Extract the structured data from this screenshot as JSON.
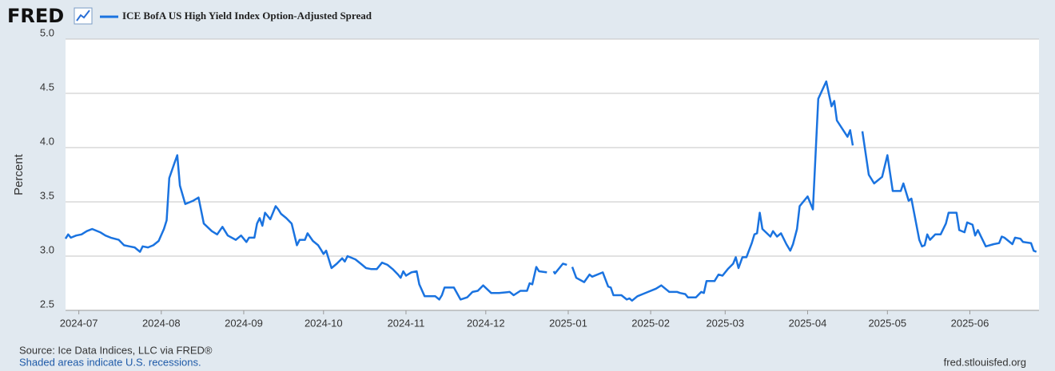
{
  "chart_data": {
    "type": "line",
    "logo": "FRED",
    "ylabel": "Percent",
    "source": "Source: Ice Data Indices, LLC via FRED®",
    "note": "Shaded areas indicate U.S. recessions.",
    "credit": "fred.stlouisfed.org",
    "grid": true,
    "xlim": [
      -5,
      361
    ],
    "xticks": [
      {
        "value": 0,
        "label": "2024-07"
      },
      {
        "value": 31,
        "label": "2024-08"
      },
      {
        "value": 62,
        "label": "2024-09"
      },
      {
        "value": 92,
        "label": "2024-10"
      },
      {
        "value": 123,
        "label": "2024-11"
      },
      {
        "value": 153,
        "label": "2024-12"
      },
      {
        "value": 184,
        "label": "2025-01"
      },
      {
        "value": 215,
        "label": "2025-02"
      },
      {
        "value": 243,
        "label": "2025-03"
      },
      {
        "value": 274,
        "label": "2025-04"
      },
      {
        "value": 304,
        "label": "2025-05"
      },
      {
        "value": 335,
        "label": "2025-06"
      }
    ],
    "ylim": [
      2.5,
      5.0
    ],
    "yticks": [
      2.5,
      {
        "value": 3,
        "label": "3.0"
      },
      3.5,
      {
        "value": 4,
        "label": "4.0"
      },
      4.5,
      {
        "value": 5,
        "label": "5.0"
      }
    ],
    "x": [
      -5,
      -4,
      -3,
      -1,
      1,
      3,
      5,
      8,
      10,
      12,
      15,
      17,
      19,
      21,
      23,
      24,
      26,
      28,
      30,
      32,
      33,
      34,
      36,
      37,
      38,
      40,
      43,
      45,
      47,
      50,
      52,
      54,
      56,
      59,
      61,
      63,
      64,
      66,
      67,
      68,
      69,
      70,
      72,
      74,
      75,
      76,
      78,
      80,
      81,
      82,
      83,
      85,
      86,
      88,
      90,
      91,
      92,
      93,
      95,
      97,
      99,
      100,
      101,
      104,
      106,
      108,
      110,
      112,
      114,
      116,
      118,
      120,
      121,
      122,
      123,
      125,
      127,
      128,
      130,
      134,
      135.5,
      136.5,
      137.5,
      141,
      143.5,
      146,
      148,
      150,
      152,
      155,
      158,
      162,
      163.5,
      166,
      168.5,
      169.5,
      170.5,
      172,
      173,
      176,
      null,
      178.5,
      179,
      182,
      183.5,
      null,
      185.5,
      187,
      190,
      192,
      193,
      197,
      199,
      200,
      201,
      204,
      206,
      207,
      208,
      210,
      212,
      214,
      217,
      219,
      221,
      222,
      225,
      226,
      228,
      229,
      232,
      234,
      235,
      236,
      239,
      240.5,
      242,
      244,
      246,
      247,
      248,
      249.5,
      251,
      253,
      254,
      255,
      256,
      257,
      260,
      261,
      262.5,
      264,
      266,
      267.5,
      268.5,
      270,
      271,
      274,
      276,
      278,
      281,
      283,
      284,
      285,
      289,
      290,
      291,
      null,
      294.6,
      297,
      299,
      302,
      304,
      306,
      309,
      310,
      312,
      313,
      316,
      317,
      318,
      319,
      320,
      322,
      324,
      326,
      327,
      330,
      331,
      333,
      334,
      336,
      337,
      338,
      341,
      344,
      346,
      347,
      348,
      351,
      352,
      354,
      355,
      358,
      359,
      360
    ],
    "series": [
      {
        "name": "ICE BofA US High Yield Index Option-Adjusted Spread",
        "color": "#1a73e0",
        "values": [
          3.16,
          3.2,
          3.17,
          3.19,
          3.2,
          3.23,
          3.25,
          3.22,
          3.19,
          3.17,
          3.15,
          3.1,
          3.09,
          3.08,
          3.04,
          3.09,
          3.08,
          3.1,
          3.14,
          3.25,
          3.33,
          3.72,
          3.86,
          3.93,
          3.65,
          3.48,
          3.51,
          3.54,
          3.3,
          3.23,
          3.2,
          3.27,
          3.19,
          3.15,
          3.19,
          3.13,
          3.17,
          3.17,
          3.3,
          3.35,
          3.28,
          3.4,
          3.34,
          3.46,
          3.43,
          3.39,
          3.35,
          3.3,
          3.2,
          3.1,
          3.15,
          3.15,
          3.21,
          3.14,
          3.1,
          3.06,
          3.02,
          3.05,
          2.89,
          2.93,
          2.98,
          2.95,
          3.0,
          2.97,
          2.93,
          2.89,
          2.88,
          2.88,
          2.94,
          2.92,
          2.88,
          2.83,
          2.8,
          2.86,
          2.82,
          2.85,
          2.86,
          2.74,
          2.63,
          2.63,
          2.6,
          2.64,
          2.71,
          2.71,
          2.6,
          2.62,
          2.67,
          2.68,
          2.73,
          2.66,
          2.66,
          2.67,
          2.64,
          2.68,
          2.68,
          2.75,
          2.74,
          2.9,
          2.86,
          2.85,
          null,
          2.86,
          2.84,
          2.93,
          2.92,
          null,
          2.9,
          2.8,
          2.76,
          2.83,
          2.81,
          2.85,
          2.72,
          2.71,
          2.64,
          2.64,
          2.6,
          2.61,
          2.59,
          2.63,
          2.65,
          2.67,
          2.7,
          2.73,
          2.69,
          2.67,
          2.67,
          2.66,
          2.65,
          2.62,
          2.62,
          2.67,
          2.66,
          2.77,
          2.77,
          2.83,
          2.82,
          2.88,
          2.93,
          2.99,
          2.89,
          2.99,
          2.99,
          3.12,
          3.2,
          3.21,
          3.4,
          3.25,
          3.18,
          3.23,
          3.18,
          3.21,
          3.11,
          3.05,
          3.11,
          3.25,
          3.46,
          3.55,
          3.43,
          4.45,
          4.61,
          4.38,
          4.43,
          4.25,
          4.1,
          4.16,
          4.02,
          null,
          4.15,
          3.75,
          3.67,
          3.73,
          3.93,
          3.6,
          3.6,
          3.67,
          3.51,
          3.53,
          3.15,
          3.09,
          3.1,
          3.2,
          3.15,
          3.2,
          3.2,
          3.3,
          3.4,
          3.4,
          3.24,
          3.22,
          3.31,
          3.29,
          3.19,
          3.24,
          3.09,
          3.11,
          3.12,
          3.18,
          3.17,
          3.11,
          3.17,
          3.16,
          3.13,
          3.12,
          3.05,
          3.04
        ]
      }
    ]
  }
}
